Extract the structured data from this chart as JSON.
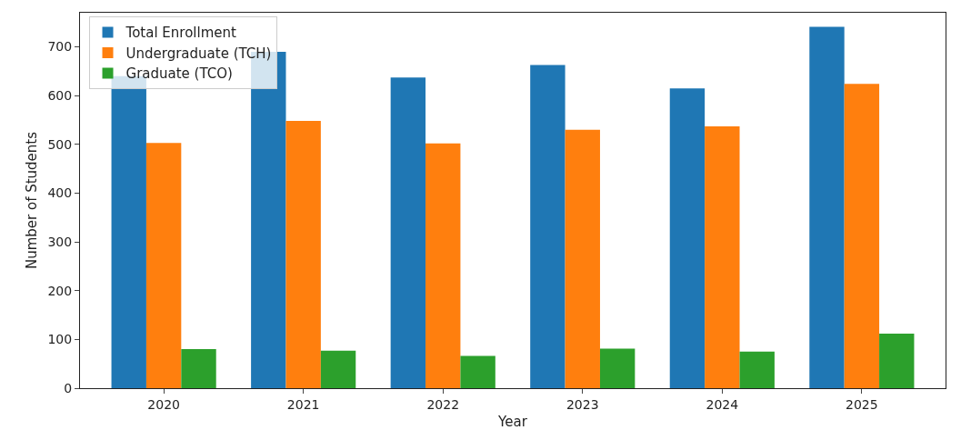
{
  "chart_data": {
    "type": "bar",
    "xlabel": "Year",
    "ylabel": "Number of Students",
    "categories": [
      "2020",
      "2021",
      "2022",
      "2023",
      "2024",
      "2025"
    ],
    "series": [
      {
        "name": "Total Enrollment",
        "color": "#1f77b4",
        "values": [
          640,
          690,
          637,
          663,
          615,
          741
        ]
      },
      {
        "name": "Undergraduate (TCH)",
        "color": "#ff7f0e",
        "values": [
          503,
          548,
          502,
          530,
          537,
          624
        ]
      },
      {
        "name": "Graduate (TCO)",
        "color": "#2ca02c",
        "values": [
          80,
          77,
          66,
          81,
          75,
          112
        ]
      }
    ],
    "ylim": [
      0,
      770
    ],
    "yticks": [
      0,
      100,
      200,
      300,
      400,
      500,
      600,
      700
    ],
    "grid": false,
    "legend": "top left"
  }
}
